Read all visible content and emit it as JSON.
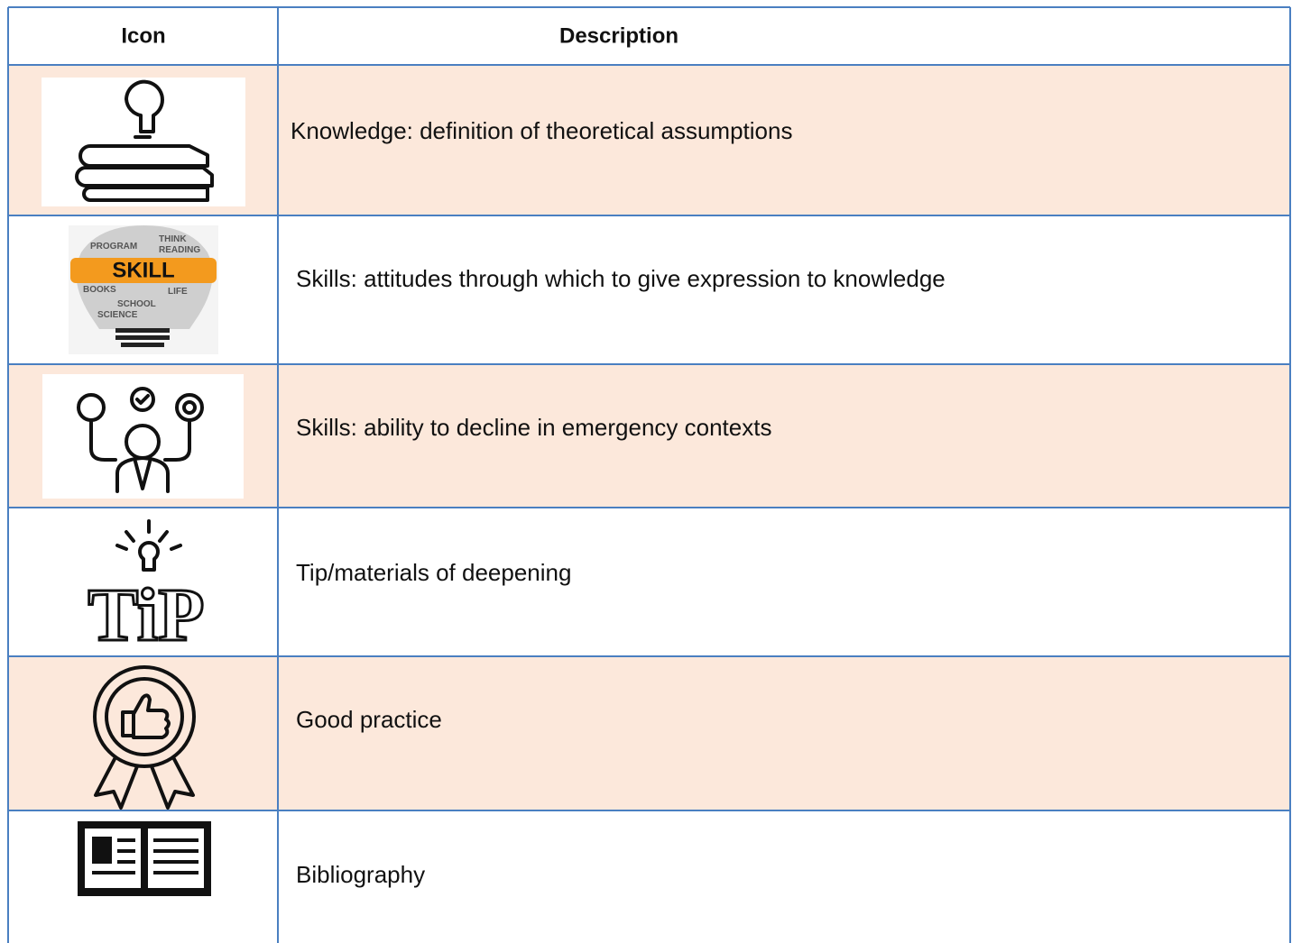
{
  "table": {
    "header": [
      "Icon",
      "Description"
    ],
    "rows": [
      "Knowledge: definition of theoretical assumptions",
      "Skills: attitudes through which to give expression to knowledge",
      "Skills: ability to decline in emergency contexts",
      "Tip/materials of deepening",
      "Good practice",
      "Bibliography"
    ]
  },
  "icons": {
    "skill": {
      "label": "SKILL",
      "words": [
        "THINK",
        "READING",
        "SCHOOL",
        "PROGRAM",
        "BOOKS",
        "LIFE",
        "SCIENCE"
      ]
    },
    "tip": {
      "label": "TiP"
    }
  }
}
